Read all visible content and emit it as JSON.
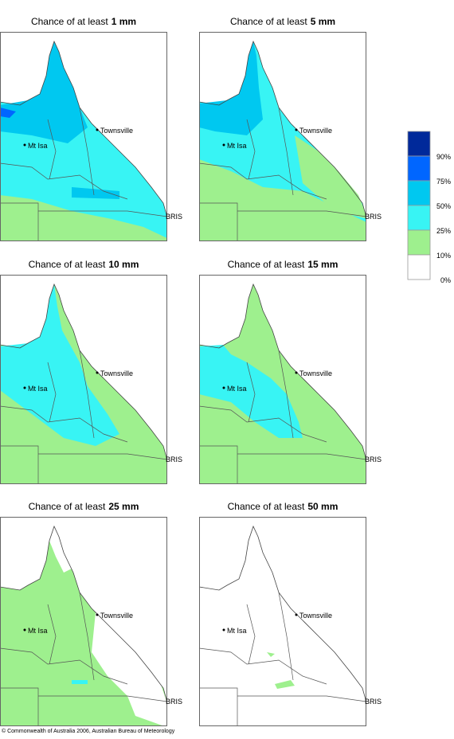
{
  "panels": [
    {
      "title": "Chance of at least",
      "amount": "1 mm"
    },
    {
      "title": "Chance of at least",
      "amount": "5 mm"
    },
    {
      "title": "Chance of at least",
      "amount": "10 mm"
    },
    {
      "title": "Chance of at least",
      "amount": "15 mm"
    },
    {
      "title": "Chance of at least",
      "amount": "25 mm"
    },
    {
      "title": "Chance of at least",
      "amount": "50 mm"
    }
  ],
  "places": {
    "townsville": "Townsville",
    "mt_isa": "Mt Isa",
    "bris": "BRIS"
  },
  "legend": [
    {
      "color": "#00299a",
      "label": "90%"
    },
    {
      "color": "#0066ff",
      "label": "75%"
    },
    {
      "color": "#00c8f0",
      "label": "50%"
    },
    {
      "color": "#38f4f4",
      "label": "25%"
    },
    {
      "color": "#9ef08e",
      "label": "10%"
    },
    {
      "color": "#ffffff",
      "label": "0%"
    }
  ],
  "footer": "© Commonwealth of Australia 2006, Australian Bureau of Meteorology"
}
